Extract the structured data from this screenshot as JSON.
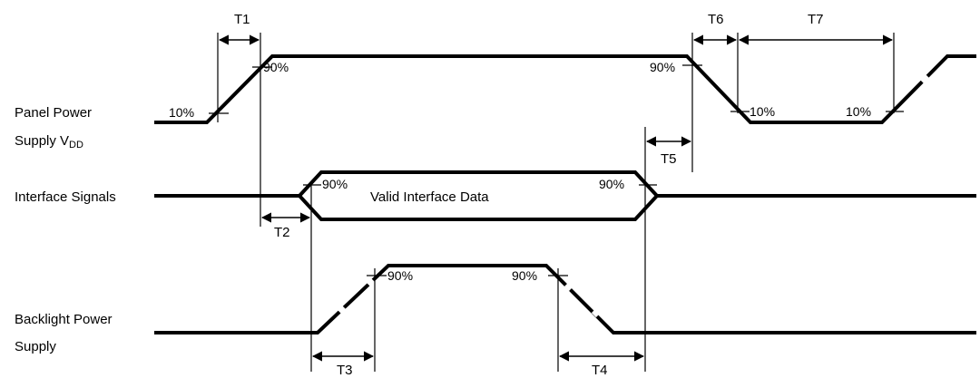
{
  "signals": {
    "panel_power_line1": "Panel Power",
    "panel_power_line2_prefix": "Supply V",
    "panel_power_line2_sub": "DD",
    "interface": "Interface Signals",
    "backlight_line1": "Backlight Power",
    "backlight_line2": "Supply"
  },
  "data_label": "Valid Interface Data",
  "timing_labels": {
    "t1": "T1",
    "t2": "T2",
    "t3": "T3",
    "t4": "T4",
    "t5": "T5",
    "t6": "T6",
    "t7": "T7"
  },
  "percent": {
    "p10": "10%",
    "p90": "90%"
  }
}
